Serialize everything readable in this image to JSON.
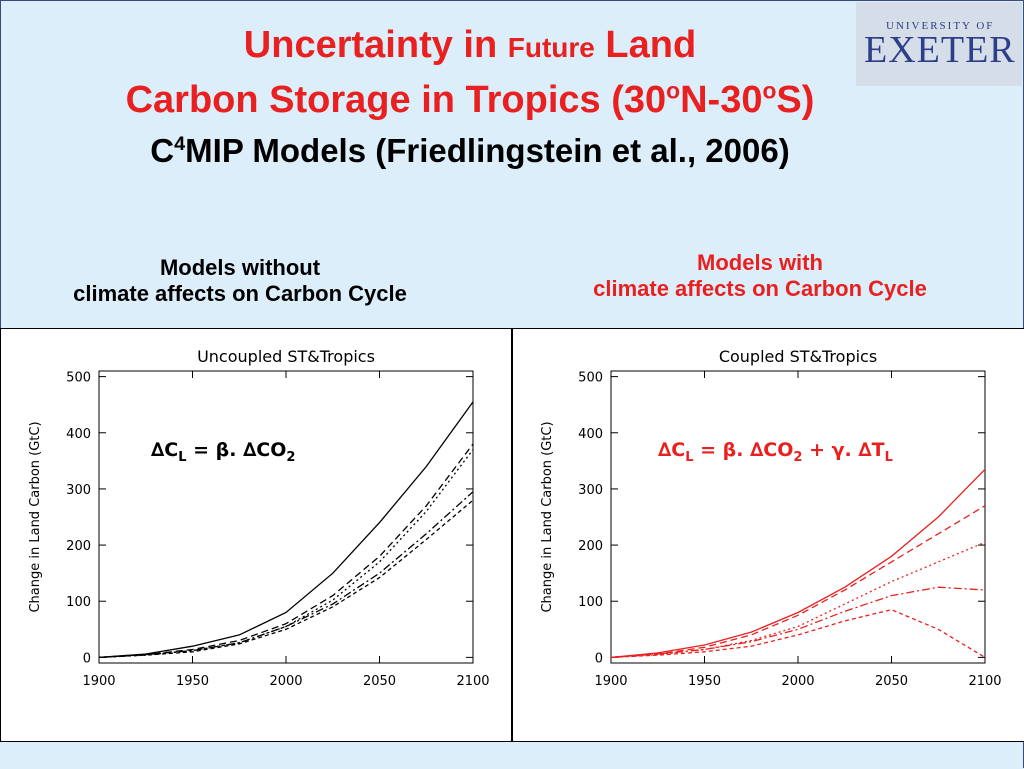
{
  "title": {
    "line1_a": "Uncertainty in",
    "line1_b": "Future",
    "line1_c": "Land",
    "line2_a": "Carbon Storage in Tropics (30",
    "line2_sup1": "o",
    "line2_b": "N-30",
    "line2_sup2": "o",
    "line2_c": "S)",
    "line3_a": "C",
    "line3_sup": "4",
    "line3_b": "MIP Models (Friedlingstein et al., 2006)"
  },
  "logo": {
    "small": "UNIVERSITY OF",
    "big": "EXETER"
  },
  "subtitles": {
    "left_line1": "Models without",
    "left_line2": "climate affects on Carbon Cycle",
    "right_line1": "Models with",
    "right_line2": "climate affects on Carbon Cycle"
  },
  "colors": {
    "title": "#e8201f",
    "left_series": "#000000",
    "right_series": "#e8201f",
    "background": "#ddeefb"
  },
  "chart_data": [
    {
      "type": "line",
      "title": "Uncoupled ST&Tropics",
      "ylabel": "Change in Land Carbon (GtC)",
      "xlabel": "",
      "xlim": [
        1900,
        2100
      ],
      "ylim": [
        -10,
        510
      ],
      "xticks": [
        1900,
        1950,
        2000,
        2050,
        2100
      ],
      "yticks": [
        0,
        100,
        200,
        300,
        400,
        500
      ],
      "annotation": {
        "dC": "∆C",
        "sub_L": "L",
        "eq": " = β. ∆CO",
        "sub_2": "2"
      },
      "series": [
        {
          "x": [
            1900,
            1925,
            1950,
            1975,
            2000,
            2025,
            2050,
            2075,
            2100
          ],
          "values": [
            0,
            6,
            20,
            40,
            80,
            150,
            240,
            340,
            455
          ]
        },
        {
          "x": [
            1900,
            1925,
            1950,
            1975,
            2000,
            2025,
            2050,
            2075,
            2100
          ],
          "values": [
            0,
            5,
            14,
            30,
            60,
            110,
            180,
            270,
            380
          ]
        },
        {
          "x": [
            1900,
            1925,
            1950,
            1975,
            2000,
            2025,
            2050,
            2075,
            2100
          ],
          "values": [
            0,
            4,
            12,
            26,
            55,
            102,
            170,
            260,
            370
          ]
        },
        {
          "x": [
            1900,
            1925,
            1950,
            1975,
            2000,
            2025,
            2050,
            2075,
            2100
          ],
          "values": [
            0,
            5,
            12,
            26,
            55,
            95,
            150,
            220,
            295
          ]
        },
        {
          "x": [
            1900,
            1925,
            1950,
            1975,
            2000,
            2025,
            2050,
            2075,
            2100
          ],
          "values": [
            0,
            4,
            10,
            24,
            50,
            90,
            142,
            210,
            280
          ]
        }
      ]
    },
    {
      "type": "line",
      "title": "Coupled ST&Tropics",
      "ylabel": "Change in Land Carbon (GtC)",
      "xlabel": "",
      "xlim": [
        1900,
        2100
      ],
      "ylim": [
        -10,
        510
      ],
      "xticks": [
        1900,
        1950,
        2000,
        2050,
        2100
      ],
      "yticks": [
        0,
        100,
        200,
        300,
        400,
        500
      ],
      "annotation": {
        "dC": "∆C",
        "sub_L": "L",
        "eq": " = β. ∆CO",
        "sub_2": "2",
        "eq2": " + γ. ∆T",
        "sub_L2": "L"
      },
      "series": [
        {
          "x": [
            1900,
            1925,
            1950,
            1975,
            2000,
            2025,
            2050,
            2075,
            2100
          ],
          "values": [
            0,
            8,
            22,
            45,
            80,
            125,
            180,
            250,
            335
          ]
        },
        {
          "x": [
            1900,
            1925,
            1950,
            1975,
            2000,
            2025,
            2050,
            2075,
            2100
          ],
          "values": [
            0,
            6,
            18,
            40,
            75,
            120,
            170,
            220,
            270
          ]
        },
        {
          "x": [
            1900,
            1925,
            1950,
            1975,
            2000,
            2025,
            2050,
            2075,
            2100
          ],
          "values": [
            0,
            5,
            14,
            30,
            55,
            95,
            135,
            170,
            205
          ]
        },
        {
          "x": [
            1900,
            1925,
            1950,
            1975,
            2000,
            2025,
            2050,
            2075,
            2100
          ],
          "values": [
            0,
            6,
            14,
            28,
            50,
            82,
            110,
            125,
            120
          ]
        },
        {
          "x": [
            1900,
            1925,
            1950,
            1975,
            2000,
            2025,
            2050,
            2075,
            2100
          ],
          "values": [
            0,
            4,
            10,
            20,
            40,
            65,
            85,
            50,
            0
          ]
        }
      ]
    }
  ]
}
